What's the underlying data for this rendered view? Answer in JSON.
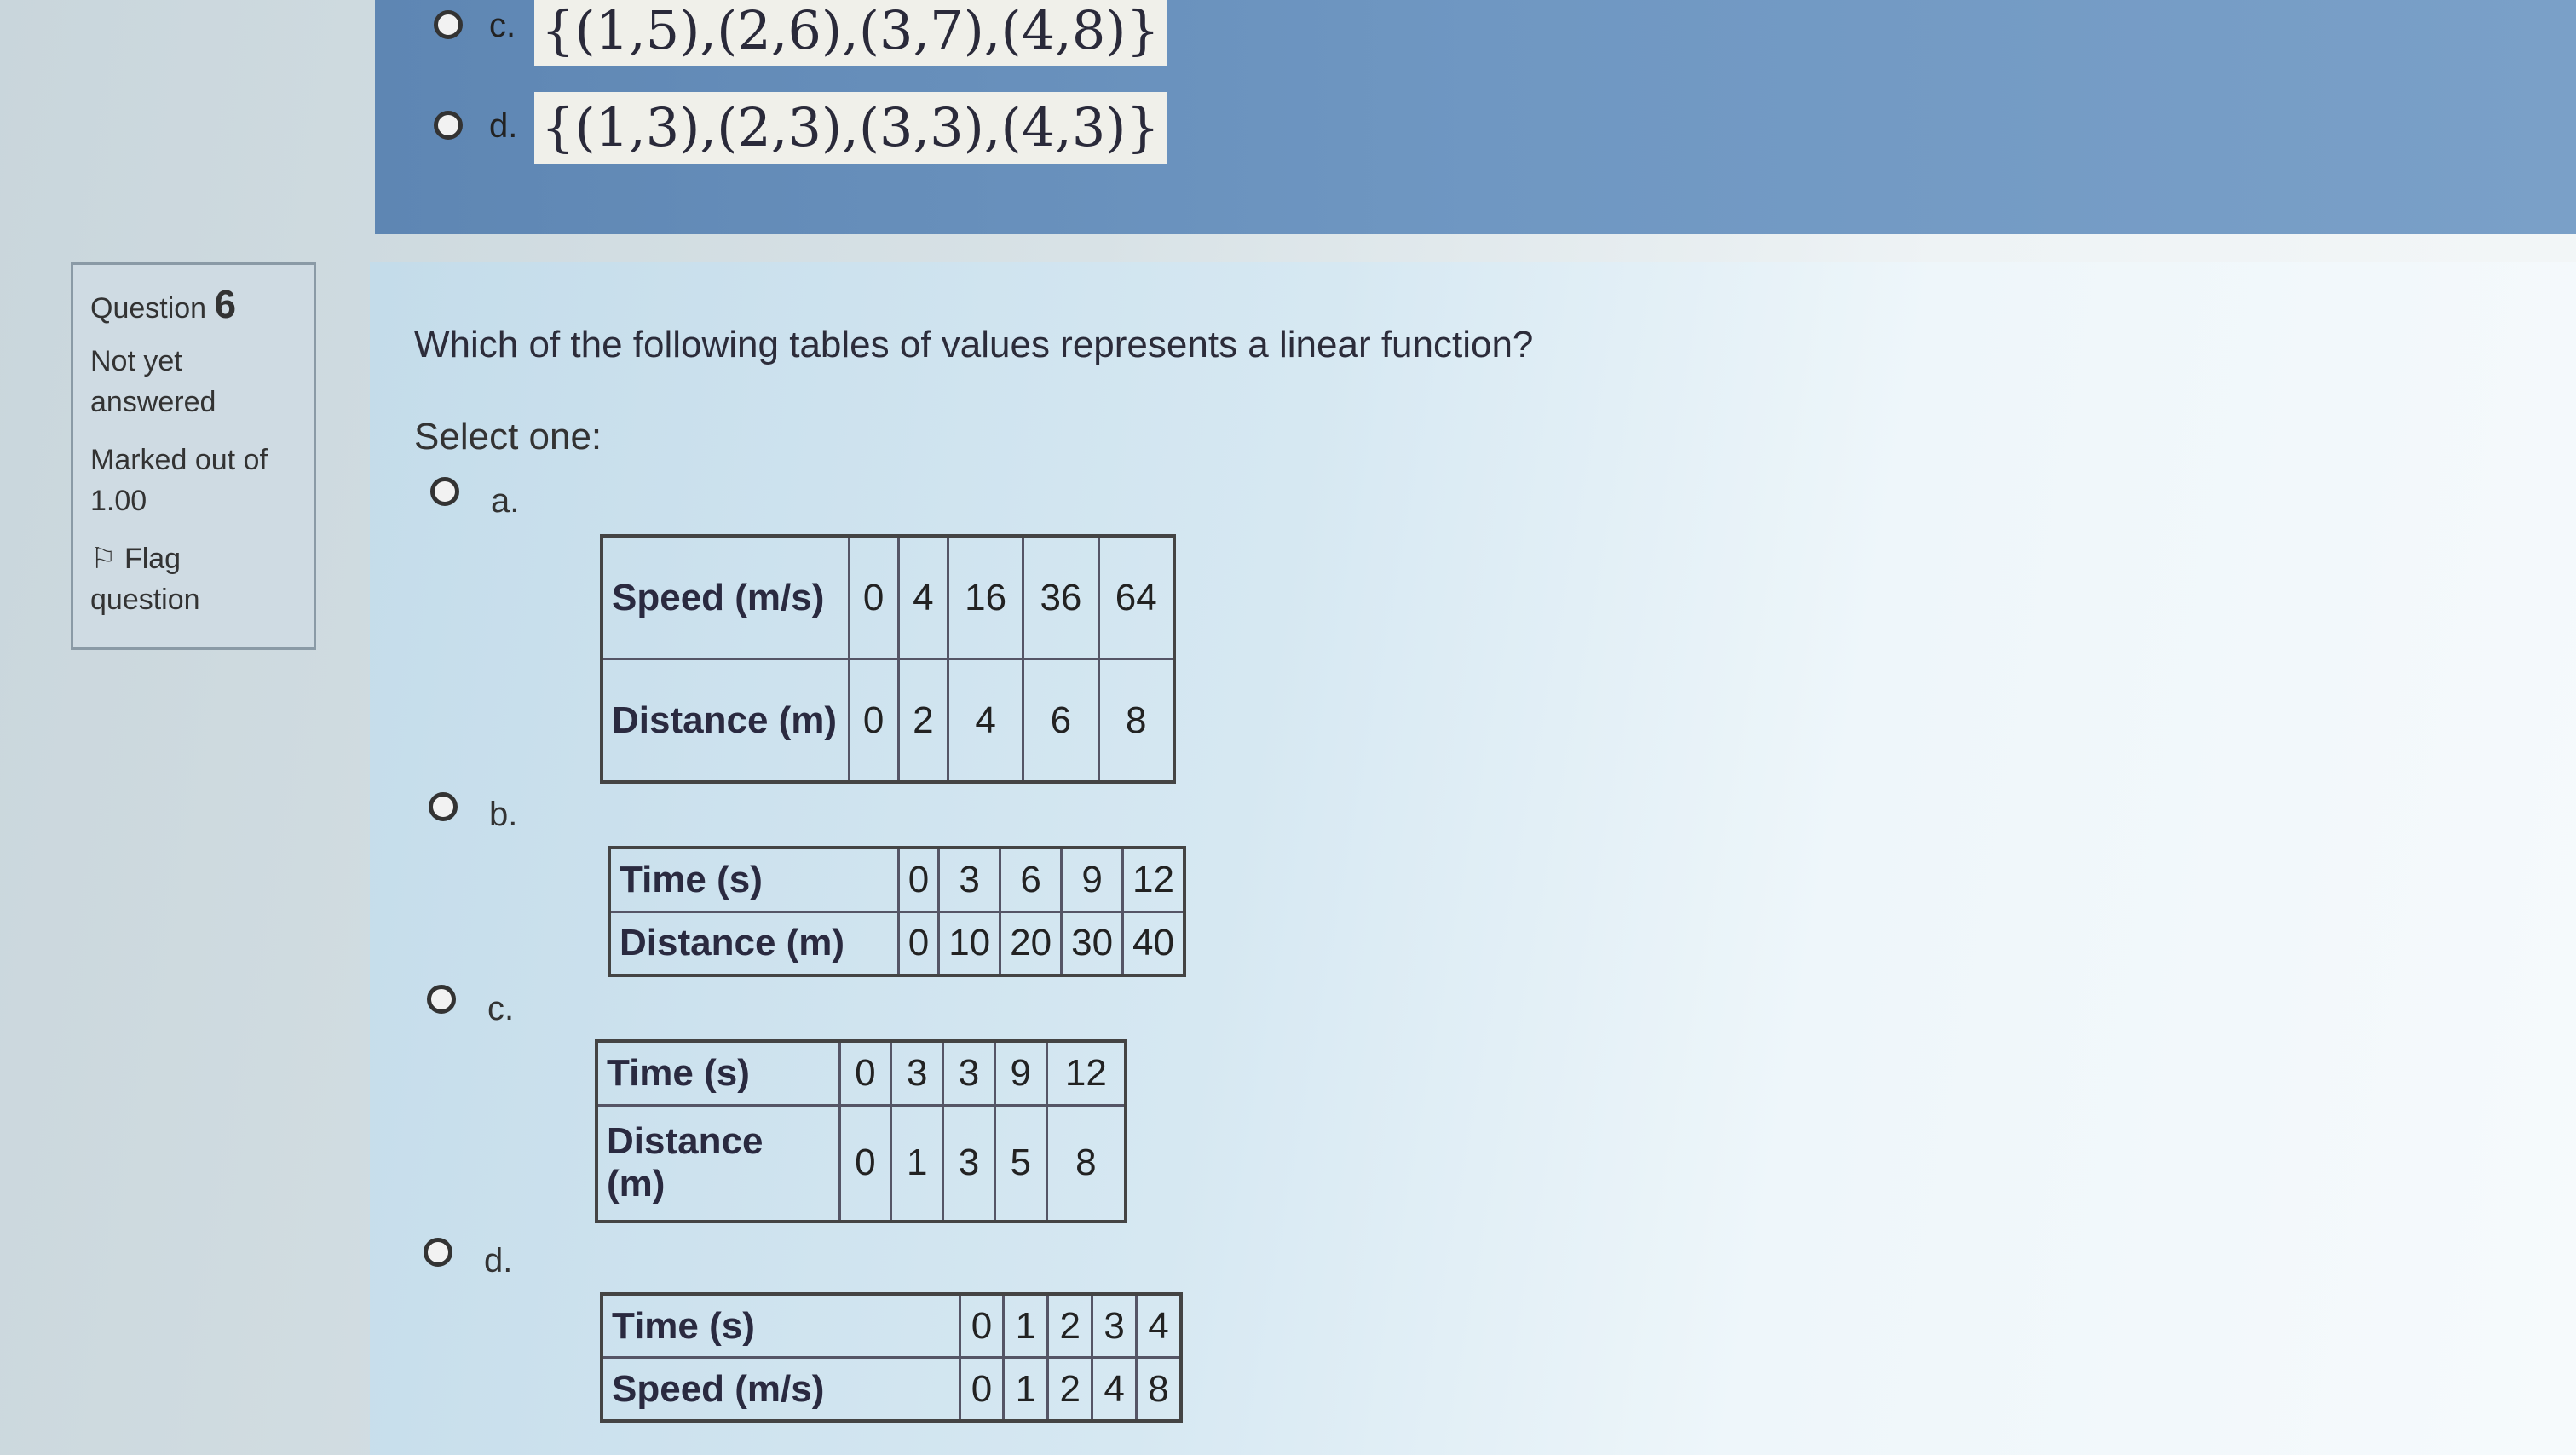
{
  "previous_question": {
    "options": [
      {
        "letter": "c.",
        "text": "{(1,5),(2,6),(3,7),(4,8)}"
      },
      {
        "letter": "d.",
        "text": "{(1,3),(2,3),(3,3),(4,3)}"
      }
    ]
  },
  "info": {
    "question_label": "Question",
    "question_number": "6",
    "status": "Not yet answered",
    "marked": "Marked out of 1.00",
    "flag": "Flag question"
  },
  "question": {
    "text": "Which of the following tables of values represents a linear function?",
    "select": "Select one:",
    "options": [
      {
        "letter": "a.",
        "rows": [
          {
            "header": "Speed (m/s)",
            "values": [
              "0",
              "4",
              "16",
              "36",
              "64"
            ]
          },
          {
            "header": "Distance (m)",
            "values": [
              "0",
              "2",
              "4",
              "6",
              "8"
            ]
          }
        ]
      },
      {
        "letter": "b.",
        "rows": [
          {
            "header": "Time (s)",
            "values": [
              "0",
              "3",
              "6",
              "9",
              "12"
            ]
          },
          {
            "header": "Distance (m)",
            "values": [
              "0",
              "10",
              "20",
              "30",
              "40"
            ]
          }
        ]
      },
      {
        "letter": "c.",
        "rows": [
          {
            "header": "Time (s)",
            "values": [
              "0",
              "3",
              "3",
              "9",
              "12"
            ]
          },
          {
            "header": "Distance (m)",
            "values": [
              "0",
              "1",
              "3",
              "5",
              "8"
            ]
          }
        ]
      },
      {
        "letter": "d.",
        "rows": [
          {
            "header": "Time (s)",
            "values": [
              "0",
              "1",
              "2",
              "3",
              "4"
            ]
          },
          {
            "header": "Speed (m/s)",
            "values": [
              "0",
              "1",
              "2",
              "4",
              "8"
            ]
          }
        ]
      }
    ]
  }
}
